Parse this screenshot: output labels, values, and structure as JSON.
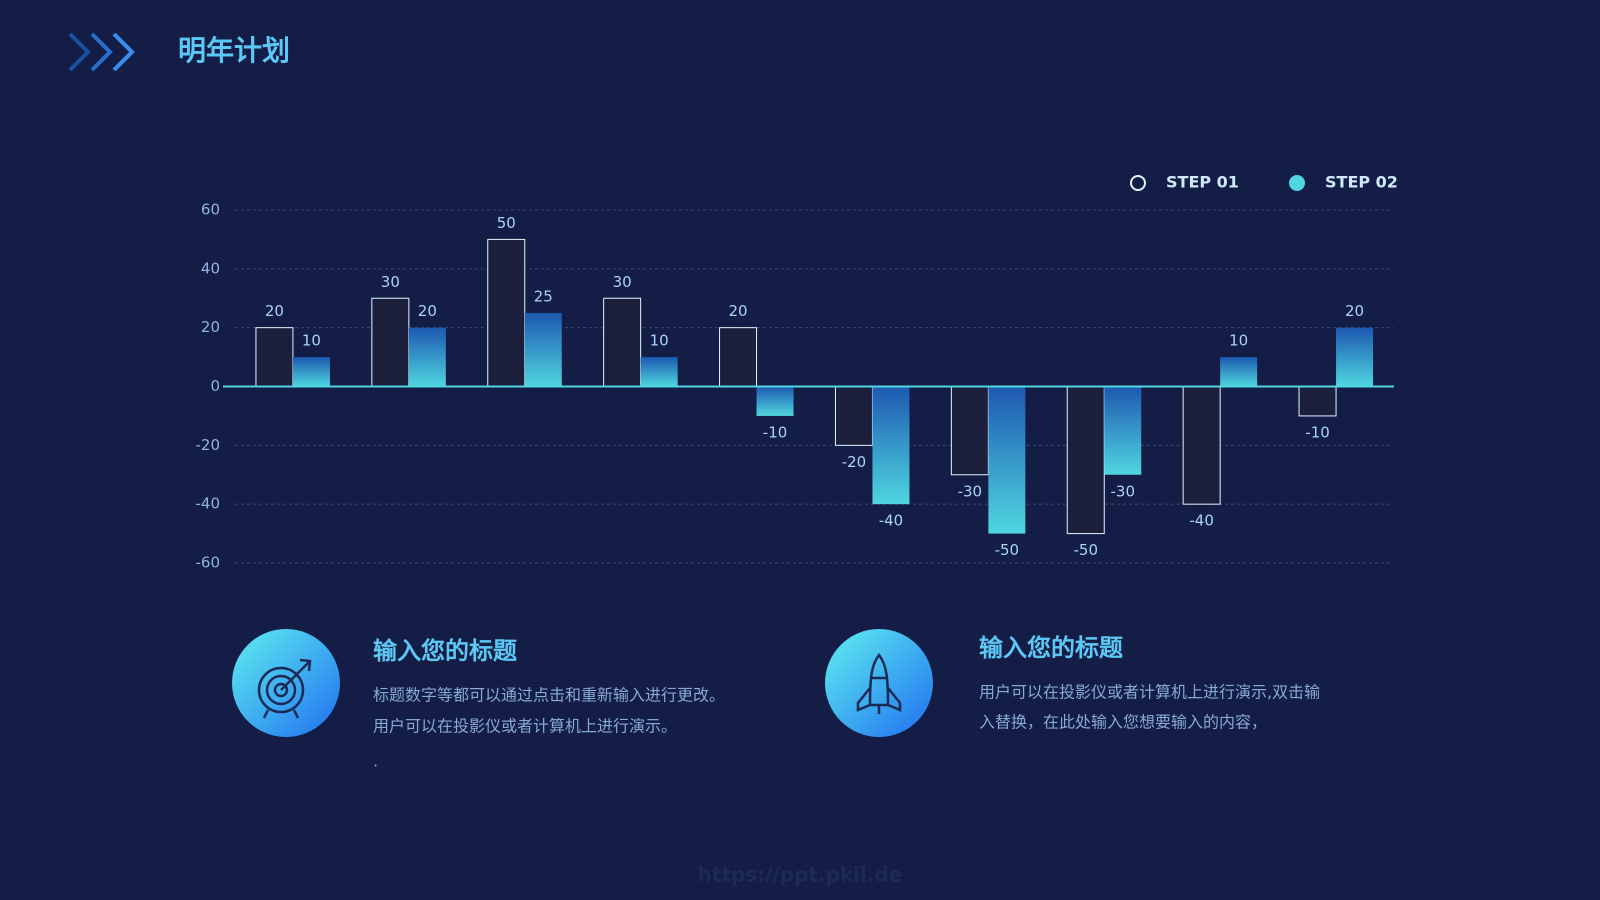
{
  "header": {
    "title": "明年计划"
  },
  "chart_data": {
    "type": "bar",
    "categories": [
      null,
      null,
      null,
      null,
      null,
      null,
      null,
      null,
      null,
      null
    ],
    "series": [
      {
        "name": "STEP 01",
        "color": "#dff6ff",
        "values": [
          20,
          30,
          50,
          30,
          20,
          -20,
          -30,
          -50,
          -40,
          -10
        ]
      },
      {
        "name": "STEP 02",
        "color": "#4fd6e0",
        "values": [
          10,
          20,
          25,
          10,
          -10,
          -40,
          -50,
          -30,
          10,
          20
        ]
      }
    ],
    "ylim": [
      -60,
      60
    ],
    "yticks": [
      -60,
      -40,
      -20,
      0,
      20,
      40,
      60
    ],
    "grid": true,
    "legend": "top-right"
  },
  "cards": [
    {
      "title": "输入您的标题",
      "lines": [
        "标题数字等都可以通过点击和重新输入进行更改。",
        "用户可以在投影仪或者计算机上进行演示。",
        "."
      ]
    },
    {
      "title": "输入您的标题",
      "lines": [
        "用户可以在投影仪或者计算机上进行演示,双击输",
        "入替换，在此处输入您想要输入的内容，"
      ]
    }
  ],
  "watermark": "https://ppt.pkil.de"
}
